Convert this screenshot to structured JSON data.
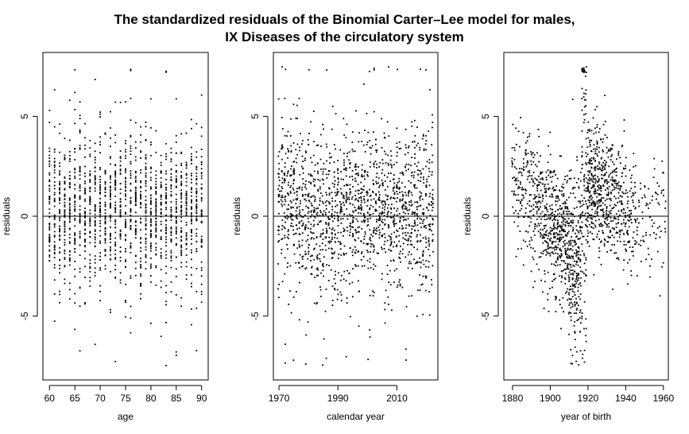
{
  "figure": {
    "title_line1": "The standardized residuals of the Binomial Carter–Lee model for males,",
    "title_line2": "IX Diseases of the circulatory system"
  },
  "chart_data": [
    {
      "type": "scatter",
      "xlabel": "age",
      "ylabel": "residuals",
      "xlim": [
        58.7,
        91.3
      ],
      "ylim": [
        -8.2,
        8.2
      ],
      "xticks": [
        "60",
        "65",
        "70",
        "75",
        "80",
        "85",
        "90"
      ],
      "yticks": [
        "-5",
        "0",
        "5"
      ],
      "reference_line_y": 0,
      "grid": false,
      "points_note": "dense column per integer age 60-90, residuals mostly -3..4, outliers to +7.5 and -7.5",
      "x_range_points": [
        60,
        90
      ],
      "y_core_range": [
        -3,
        4
      ],
      "y_extreme_range": [
        -7.5,
        7.5
      ]
    },
    {
      "type": "scatter",
      "xlabel": "calendar year",
      "ylabel": "residuals",
      "xlim": [
        1968.1,
        2023.9
      ],
      "ylim": [
        -8.2,
        8.2
      ],
      "xticks": [
        "1970",
        "1990",
        "2010"
      ],
      "yticks": [
        "-5",
        "0",
        "5"
      ],
      "reference_line_y": 0,
      "grid": false,
      "x_range_points": [
        1970,
        2022
      ],
      "y_core_range": [
        -3,
        4
      ],
      "y_extreme_range": [
        -7.5,
        7.5
      ]
    },
    {
      "type": "scatter",
      "xlabel": "year of birth",
      "ylabel": "residuals",
      "xlim": [
        1875.4,
        1962.6
      ],
      "ylim": [
        -8.2,
        8.2
      ],
      "xticks": [
        "1880",
        "1900",
        "1920",
        "1940",
        "1960"
      ],
      "yticks": [
        "-5",
        "0",
        "5"
      ],
      "reference_line_y": 0,
      "grid": false,
      "x_range_points": [
        1880,
        1961
      ],
      "y_core_range": [
        -3,
        4
      ],
      "y_extreme_range": [
        -7.5,
        7.5
      ]
    }
  ]
}
